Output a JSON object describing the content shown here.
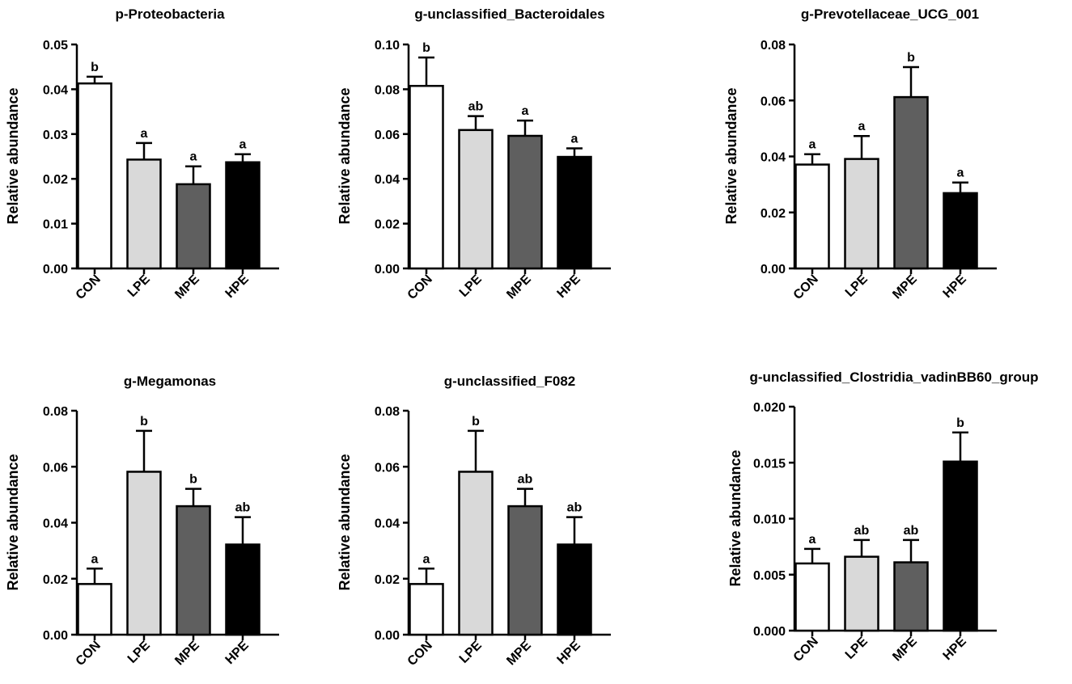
{
  "figure": {
    "ylabel": "Relative abundance",
    "bar_colors": [
      "#ffffff",
      "#d9d9d9",
      "#5f5f5f",
      "#000000"
    ],
    "stroke_color": "#000000"
  },
  "chart_data": [
    {
      "type": "bar",
      "title": "p-Proteobacteria",
      "xlabel": "",
      "ylabel": "Relative abundance",
      "categories": [
        "CON",
        "LPE",
        "MPE",
        "HPE"
      ],
      "values": [
        0.0413,
        0.0243,
        0.0188,
        0.0237
      ],
      "errors": [
        0.0015,
        0.0037,
        0.004,
        0.0018
      ],
      "labels": [
        "b",
        "a",
        "a",
        "a"
      ],
      "ylim": [
        0,
        0.05
      ],
      "yticks": [
        "0.00",
        "0.01",
        "0.02",
        "0.03",
        "0.04",
        "0.05"
      ]
    },
    {
      "type": "bar",
      "title": "g-unclassified_Bacteroidales",
      "xlabel": "",
      "ylabel": "Relative abundance",
      "categories": [
        "CON",
        "LPE",
        "MPE",
        "HPE"
      ],
      "values": [
        0.0815,
        0.0618,
        0.0592,
        0.0498
      ],
      "errors": [
        0.0127,
        0.0062,
        0.0068,
        0.0038
      ],
      "labels": [
        "b",
        "ab",
        "a",
        "a"
      ],
      "ylim": [
        0,
        0.1
      ],
      "yticks": [
        "0.00",
        "0.02",
        "0.04",
        "0.06",
        "0.08",
        "0.10"
      ]
    },
    {
      "type": "bar",
      "title": "g-Prevotellaceae_UCG_001",
      "xlabel": "",
      "ylabel": "Relative abundance",
      "categories": [
        "CON",
        "LPE",
        "MPE",
        "HPE"
      ],
      "values": [
        0.0371,
        0.0391,
        0.0612,
        0.0269
      ],
      "errors": [
        0.0037,
        0.0082,
        0.0107,
        0.0038
      ],
      "labels": [
        "a",
        "a",
        "b",
        "a"
      ],
      "ylim": [
        0,
        0.08
      ],
      "yticks": [
        "0.00",
        "0.02",
        "0.04",
        "0.06",
        "0.08"
      ]
    },
    {
      "type": "bar",
      "title": "g-Megamonas",
      "xlabel": "",
      "ylabel": "Relative abundance",
      "categories": [
        "CON",
        "LPE",
        "MPE",
        "HPE"
      ],
      "values": [
        0.0181,
        0.0582,
        0.0459,
        0.0322
      ],
      "errors": [
        0.0055,
        0.0146,
        0.0062,
        0.0098
      ],
      "labels": [
        "a",
        "b",
        "b",
        "ab"
      ],
      "ylim": [
        0,
        0.08
      ],
      "yticks": [
        "0.00",
        "0.02",
        "0.04",
        "0.06",
        "0.08"
      ]
    },
    {
      "type": "bar",
      "title": "g-unclassified_F082",
      "xlabel": "",
      "ylabel": "Relative abundance",
      "categories": [
        "CON",
        "LPE",
        "MPE",
        "HPE"
      ],
      "values": [
        0.0181,
        0.0582,
        0.0459,
        0.0322
      ],
      "errors": [
        0.0055,
        0.0146,
        0.0062,
        0.0098
      ],
      "labels": [
        "a",
        "b",
        "ab",
        "ab"
      ],
      "ylim": [
        0,
        0.08
      ],
      "yticks": [
        "0.00",
        "0.02",
        "0.04",
        "0.06",
        "0.08"
      ]
    },
    {
      "type": "bar",
      "title": "g-unclassified_Clostridia_vadinBB60_group",
      "xlabel": "",
      "ylabel": "Relative abundance",
      "categories": [
        "CON",
        "LPE",
        "MPE",
        "HPE"
      ],
      "values": [
        0.006,
        0.0066,
        0.0061,
        0.0151
      ],
      "errors": [
        0.0013,
        0.0015,
        0.002,
        0.0026
      ],
      "labels": [
        "a",
        "ab",
        "ab",
        "b"
      ],
      "ylim": [
        0,
        0.02
      ],
      "yticks": [
        "0.000",
        "0.005",
        "0.010",
        "0.015",
        "0.020"
      ]
    }
  ]
}
